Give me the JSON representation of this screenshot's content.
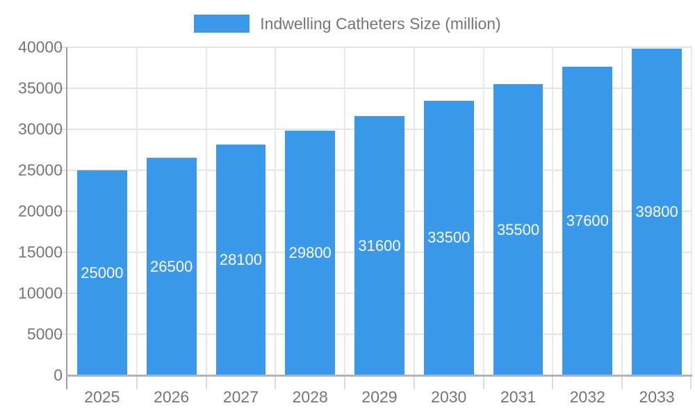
{
  "legend": {
    "label": "Indwelling Catheters Size (million)"
  },
  "colors": {
    "bar": "#3b99ec",
    "bar_value_text": "#ffffff",
    "axis_text": "#757575",
    "y_axis_line": "#9e9e9e",
    "x_axis_line": "#b3b3b3",
    "gridline": "#e4e4e4"
  },
  "chart_data": {
    "type": "bar",
    "title": "Indwelling Catheters Size (million)",
    "series_name": "Indwelling Catheters Size (million)",
    "categories": [
      "2025",
      "2026",
      "2027",
      "2028",
      "2029",
      "2030",
      "2031",
      "2032",
      "2033"
    ],
    "values": [
      25000,
      26500,
      28100,
      29800,
      31600,
      33500,
      35500,
      37600,
      39800
    ],
    "value_labels": [
      "25000",
      "26500",
      "28100",
      "29800",
      "31600",
      "33500",
      "35500",
      "37600",
      "39800"
    ],
    "xlabel": "",
    "ylabel": "",
    "ylim": [
      0,
      40000
    ],
    "yticks": [
      0,
      5000,
      10000,
      15000,
      20000,
      25000,
      30000,
      35000,
      40000
    ],
    "grid": true,
    "legend_position": "top-center",
    "bar_labels_position": "inside-center"
  }
}
